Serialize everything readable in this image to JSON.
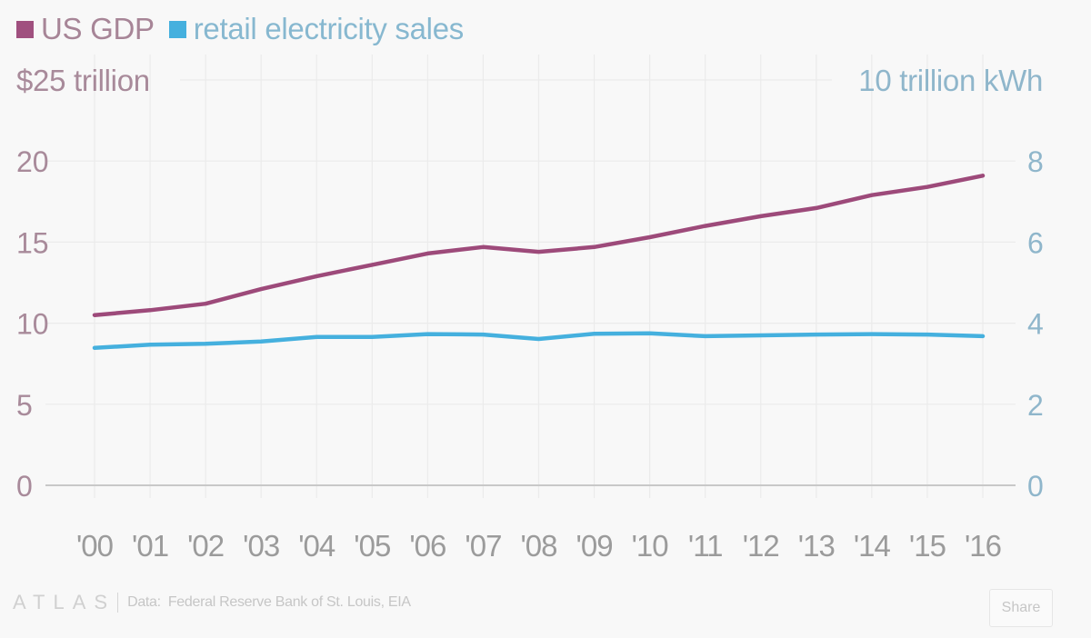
{
  "legend": [
    {
      "label": "US GDP",
      "color": "#a0507f",
      "text_color": "#a78597"
    },
    {
      "label": "retail electricity sales",
      "color": "#45b0de",
      "text_color": "#87b8d0"
    }
  ],
  "footer": {
    "logo": "ATLAS",
    "source_label": "Data:",
    "source": "Federal Reserve Bank of St. Louis, EIA",
    "share_label": "Share"
  },
  "colors": {
    "gdp": "#9d4a7a",
    "electricity": "#45b0de",
    "left_axis_text": "#a88a9a",
    "right_axis_text": "#8fb6cb",
    "grid": "#ebebeb",
    "baseline": "#c8c8c8"
  },
  "chart_data": {
    "type": "line",
    "title": "",
    "x": [
      "'00",
      "'01",
      "'02",
      "'03",
      "'04",
      "'05",
      "'06",
      "'07",
      "'08",
      "'09",
      "'10",
      "'11",
      "'12",
      "'13",
      "'14",
      "'15",
      "'16"
    ],
    "xlabel": "",
    "left_axis": {
      "label": "$25 trillion",
      "unit": "trillion USD",
      "ylim": [
        0,
        25
      ],
      "ticks": [
        0,
        5,
        10,
        15,
        20
      ],
      "top_label": "$25 trillion"
    },
    "right_axis": {
      "label": "10 trillion kWh",
      "unit": "trillion kWh",
      "ylim": [
        0,
        10
      ],
      "ticks": [
        0,
        2,
        4,
        6,
        8
      ],
      "top_label": "10 trillion kWh"
    },
    "series": [
      {
        "name": "US GDP",
        "axis": "left",
        "values": [
          10.5,
          10.8,
          11.2,
          12.1,
          12.9,
          13.6,
          14.3,
          14.7,
          14.4,
          14.7,
          15.3,
          16.0,
          16.6,
          17.1,
          17.9,
          18.4,
          19.1
        ]
      },
      {
        "name": "retail electricity sales",
        "axis": "right",
        "values": [
          3.39,
          3.47,
          3.49,
          3.55,
          3.66,
          3.66,
          3.73,
          3.72,
          3.61,
          3.74,
          3.75,
          3.68,
          3.7,
          3.72,
          3.73,
          3.72,
          3.68
        ]
      }
    ],
    "grid": true,
    "legend_position": "top-left"
  }
}
